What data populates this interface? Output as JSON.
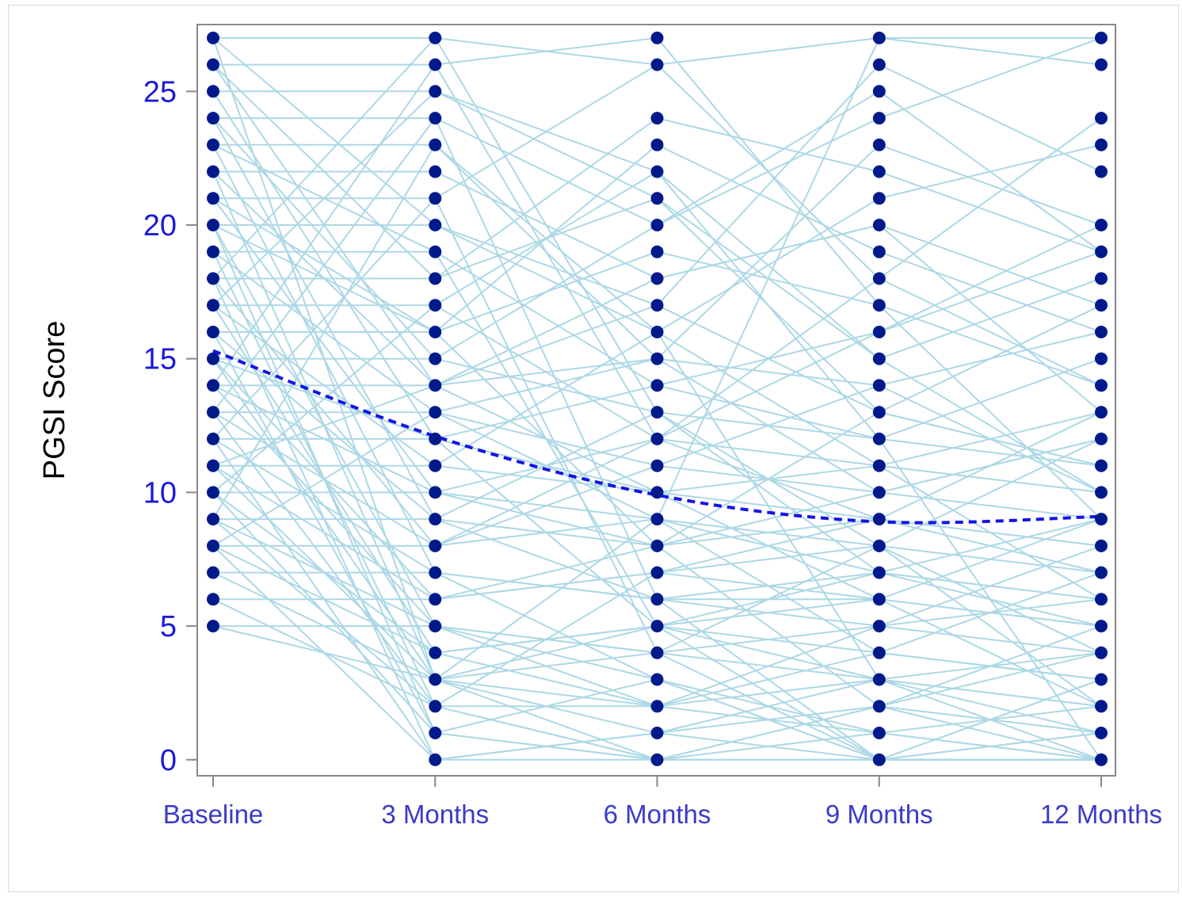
{
  "chart_data": {
    "type": "line",
    "title": "",
    "xlabel": "",
    "ylabel": "PGSI Score",
    "categories": [
      "Baseline",
      "3 Months",
      "6 Months",
      "9 Months",
      "12 Months"
    ],
    "yticks": [
      0,
      5,
      10,
      15,
      20,
      25
    ],
    "ylim": [
      -0.6,
      27.5
    ],
    "grid": false,
    "legend": "none",
    "colors": {
      "individual_lines": "#add8e6",
      "points": "#001a8c",
      "mean_line": "#1414e6",
      "tick_labels": "#1a1ad6",
      "axis": "#888888"
    },
    "observed_scores": [
      [
        5,
        6,
        7,
        8,
        9,
        10,
        11,
        12,
        13,
        14,
        15,
        16,
        17,
        18,
        19,
        20,
        21,
        22,
        23,
        24,
        25,
        26,
        27
      ],
      [
        0,
        1,
        2,
        3,
        4,
        5,
        6,
        7,
        8,
        9,
        10,
        11,
        12,
        13,
        14,
        15,
        16,
        17,
        18,
        19,
        20,
        21,
        22,
        23,
        24,
        25,
        26,
        27
      ],
      [
        0,
        1,
        2,
        3,
        4,
        5,
        6,
        7,
        8,
        9,
        10,
        11,
        12,
        13,
        14,
        15,
        16,
        17,
        18,
        19,
        20,
        21,
        22,
        23,
        24,
        26,
        27
      ],
      [
        0,
        1,
        2,
        3,
        4,
        5,
        6,
        7,
        8,
        9,
        10,
        11,
        12,
        13,
        14,
        15,
        16,
        17,
        18,
        19,
        20,
        21,
        22,
        23,
        24,
        25,
        26,
        27
      ],
      [
        0,
        1,
        2,
        3,
        4,
        5,
        6,
        7,
        8,
        9,
        10,
        11,
        12,
        13,
        14,
        15,
        16,
        17,
        18,
        19,
        20,
        22,
        23,
        24,
        26,
        27
      ]
    ],
    "individual_trajectories": [
      [
        27,
        27,
        26,
        27,
        27
      ],
      [
        27,
        20,
        16,
        11,
        6
      ],
      [
        26,
        26,
        27,
        17,
        9
      ],
      [
        26,
        14,
        10,
        6,
        2
      ],
      [
        25,
        25,
        22,
        12,
        0
      ],
      [
        25,
        12,
        5,
        3,
        1
      ],
      [
        24,
        24,
        20,
        25,
        19
      ],
      [
        24,
        9,
        13,
        8,
        4
      ],
      [
        23,
        23,
        15,
        10,
        12
      ],
      [
        23,
        7,
        3,
        0,
        0
      ],
      [
        22,
        22,
        18,
        20,
        13
      ],
      [
        22,
        3,
        0,
        2,
        5
      ],
      [
        21,
        21,
        26,
        18,
        24
      ],
      [
        21,
        10,
        8,
        9,
        7
      ],
      [
        20,
        20,
        17,
        13,
        11
      ],
      [
        20,
        5,
        2,
        1,
        0
      ],
      [
        20,
        16,
        23,
        19,
        16
      ],
      [
        19,
        19,
        14,
        16,
        20
      ],
      [
        19,
        13,
        9,
        4,
        3
      ],
      [
        19,
        2,
        0,
        0,
        0
      ],
      [
        18,
        18,
        21,
        15,
        18
      ],
      [
        18,
        8,
        11,
        14,
        10
      ],
      [
        18,
        0,
        1,
        3,
        2
      ],
      [
        17,
        17,
        12,
        9,
        8
      ],
      [
        17,
        11,
        16,
        21,
        23
      ],
      [
        17,
        4,
        5,
        6,
        9
      ],
      [
        16,
        16,
        19,
        17,
        14
      ],
      [
        16,
        9,
        6,
        5,
        4
      ],
      [
        16,
        1,
        0,
        2,
        1
      ],
      [
        15,
        15,
        13,
        12,
        15
      ],
      [
        15,
        12,
        10,
        11,
        13
      ],
      [
        15,
        6,
        7,
        8,
        12
      ],
      [
        15,
        3,
        4,
        0,
        0
      ],
      [
        14,
        14,
        15,
        14,
        16
      ],
      [
        14,
        10,
        9,
        7,
        6
      ],
      [
        14,
        5,
        3,
        1,
        2
      ],
      [
        13,
        13,
        11,
        10,
        9
      ],
      [
        13,
        8,
        12,
        16,
        19
      ],
      [
        13,
        2,
        2,
        4,
        7
      ],
      [
        12,
        12,
        14,
        12,
        11
      ],
      [
        12,
        7,
        6,
        6,
        5
      ],
      [
        12,
        0,
        0,
        0,
        3
      ],
      [
        11,
        11,
        10,
        9,
        8
      ],
      [
        11,
        6,
        8,
        13,
        17
      ],
      [
        11,
        3,
        1,
        2,
        4
      ],
      [
        10,
        10,
        12,
        11,
        10
      ],
      [
        10,
        4,
        5,
        7,
        6
      ],
      [
        10,
        1,
        3,
        0,
        0
      ],
      [
        9,
        9,
        8,
        10,
        12
      ],
      [
        9,
        5,
        4,
        3,
        2
      ],
      [
        9,
        2,
        7,
        9,
        13
      ],
      [
        8,
        8,
        9,
        8,
        7
      ],
      [
        8,
        4,
        2,
        5,
        8
      ],
      [
        8,
        0,
        1,
        0,
        1
      ],
      [
        7,
        7,
        6,
        7,
        9
      ],
      [
        7,
        3,
        5,
        4,
        3
      ],
      [
        6,
        6,
        7,
        6,
        5
      ],
      [
        6,
        2,
        0,
        1,
        0
      ],
      [
        5,
        5,
        4,
        5,
        6
      ],
      [
        5,
        3,
        2,
        3,
        4
      ],
      [
        27,
        3,
        9,
        27,
        26
      ],
      [
        26,
        18,
        24,
        22,
        19
      ],
      [
        24,
        15,
        20,
        24,
        27
      ],
      [
        22,
        14,
        17,
        26,
        22
      ],
      [
        21,
        16,
        8,
        2,
        0
      ],
      [
        23,
        19,
        5,
        0,
        3
      ],
      [
        18,
        27,
        13,
        7,
        5
      ],
      [
        14,
        26,
        12,
        18,
        14
      ],
      [
        12,
        21,
        4,
        8,
        2
      ],
      [
        10,
        17,
        22,
        15,
        10
      ],
      [
        9,
        23,
        16,
        3,
        0
      ],
      [
        13,
        24,
        6,
        0,
        1
      ],
      [
        17,
        25,
        21,
        13,
        11
      ],
      [
        20,
        1,
        0,
        0,
        0
      ],
      [
        11,
        14,
        18,
        20,
        17
      ],
      [
        8,
        13,
        15,
        23,
        20
      ]
    ],
    "mean_series": {
      "x": [
        "Baseline",
        "3 Months",
        "6 Months",
        "9 Months",
        "12 Months"
      ],
      "values": [
        15.3,
        12.1,
        9.9,
        8.9,
        9.1
      ]
    }
  }
}
